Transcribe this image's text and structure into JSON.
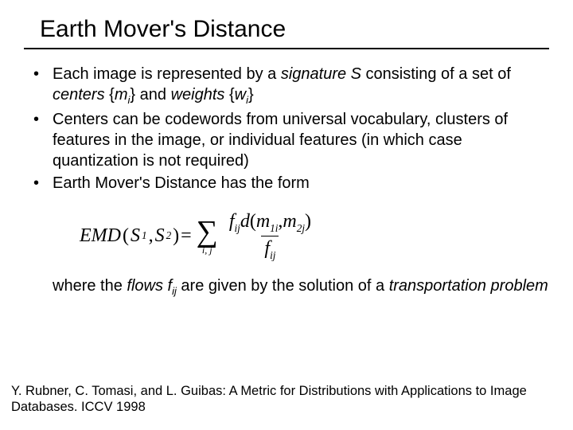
{
  "title": "Earth Mover's Distance",
  "bullets": {
    "b1_a": "Each image is represented by a ",
    "b1_sig": "signature S",
    "b1_b": " consisting of a set of ",
    "b1_cent": "centers",
    "b1_c": " {",
    "b1_m": "m",
    "b1_i1": "i",
    "b1_d": "} and ",
    "b1_wgt": "weights",
    "b1_e": " {",
    "b1_w": "w",
    "b1_i2": "i",
    "b1_f": "}",
    "b2": "Centers can be codewords from universal vocabulary, clusters of features in the image, or individual features (in which case quantization is not required)",
    "b3": "Earth Mover's Distance has the form"
  },
  "formula": {
    "lhs_emd": "EMD",
    "lp": "(",
    "S": "S",
    "one": "1",
    "comma": ",",
    "two": "2",
    "rp": ")",
    "eq": " = ",
    "sigma": "∑",
    "lims": "i, j",
    "f": "f",
    "ij": "ij",
    "d": "d",
    "m": "m",
    "1i": "1i",
    "2j": "2j"
  },
  "closing": {
    "a": "where the ",
    "flows": "flows f",
    "ij": "ij",
    "b": " are given by the solution of a ",
    "tp": "transportation problem"
  },
  "citation": "Y. Rubner, C. Tomasi, and L. Guibas: A Metric for Distributions with Applications to Image Databases. ICCV 1998"
}
